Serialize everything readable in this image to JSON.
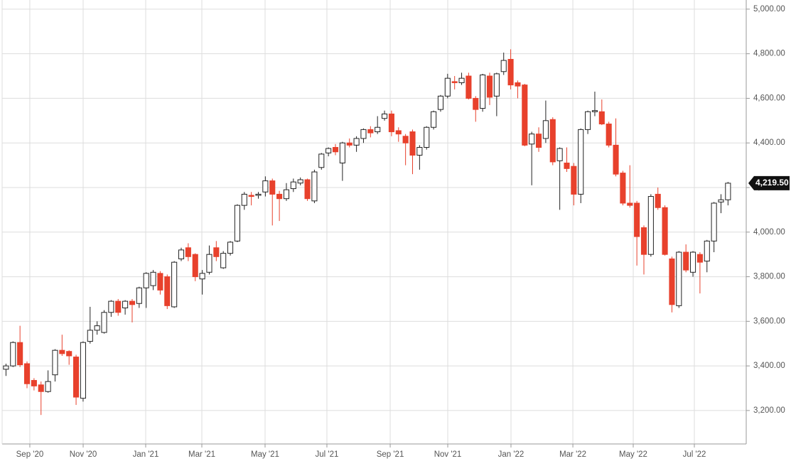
{
  "chart_data": {
    "type": "candlestick",
    "open": [
      3385,
      3400,
      3505,
      3410,
      3335,
      3315,
      3285,
      3360,
      3470,
      3465,
      3440,
      3255,
      3510,
      3560,
      3550,
      3640,
      3690,
      3660,
      3690,
      3680,
      3750,
      3760,
      3815,
      3800,
      3665,
      3880,
      3930,
      3900,
      3790,
      3820,
      3930,
      3840,
      3905,
      3960,
      4120,
      4165,
      4165,
      4180,
      4230,
      4170,
      4150,
      4195,
      4220,
      4235,
      4140,
      4290,
      4355,
      4380,
      4310,
      4400,
      4390,
      4420,
      4460,
      4450,
      4510,
      4530,
      4455,
      4430,
      4450,
      4345,
      4380,
      4470,
      4550,
      4610,
      4675,
      4670,
      4700,
      4600,
      4555,
      4700,
      4610,
      4720,
      4775,
      4670,
      4660,
      4395,
      4440,
      4420,
      4505,
      4320,
      4310,
      4295,
      4170,
      4460,
      4540,
      4540,
      4485,
      4390,
      4265,
      4130,
      4130,
      4020,
      3900,
      4170,
      4110,
      3880,
      3670,
      3910,
      3820,
      3900,
      3870,
      3960,
      4135,
      4145
    ],
    "high": [
      3410,
      3510,
      3580,
      3420,
      3345,
      3330,
      3380,
      3475,
      3540,
      3470,
      3450,
      3510,
      3665,
      3600,
      3650,
      3695,
      3700,
      3695,
      3700,
      3755,
      3820,
      3830,
      3825,
      3810,
      3870,
      3930,
      3950,
      3905,
      3830,
      3940,
      3960,
      3915,
      3960,
      4125,
      4180,
      4180,
      4180,
      4250,
      4240,
      4185,
      4220,
      4240,
      4245,
      4240,
      4280,
      4355,
      4380,
      4395,
      4405,
      4420,
      4430,
      4465,
      4475,
      4520,
      4545,
      4545,
      4470,
      4440,
      4460,
      4390,
      4475,
      4545,
      4615,
      4710,
      4700,
      4715,
      4715,
      4610,
      4710,
      4715,
      4715,
      4805,
      4820,
      4680,
      4665,
      4450,
      4470,
      4590,
      4515,
      4380,
      4380,
      4310,
      4465,
      4545,
      4630,
      4595,
      4495,
      4510,
      4275,
      4300,
      4140,
      4030,
      4170,
      4200,
      4120,
      3890,
      3915,
      3945,
      3915,
      3910,
      3965,
      4135,
      4170,
      4225
    ],
    "low": [
      3355,
      3395,
      3395,
      3300,
      3290,
      3180,
      3280,
      3330,
      3445,
      3405,
      3225,
      3240,
      3500,
      3540,
      3545,
      3620,
      3625,
      3630,
      3595,
      3660,
      3660,
      3740,
      3720,
      3655,
      3660,
      3870,
      3870,
      3780,
      3720,
      3810,
      3870,
      3835,
      3895,
      3955,
      4100,
      4120,
      4150,
      4160,
      4030,
      4050,
      4140,
      4180,
      4210,
      4140,
      4130,
      4280,
      4340,
      4345,
      4230,
      4380,
      4360,
      4400,
      4425,
      4440,
      4500,
      4430,
      4405,
      4300,
      4260,
      4280,
      4370,
      4460,
      4540,
      4600,
      4640,
      4660,
      4595,
      4495,
      4540,
      4570,
      4520,
      4705,
      4640,
      4600,
      4385,
      4210,
      4360,
      4400,
      4300,
      4100,
      4270,
      4120,
      4130,
      4440,
      4520,
      4480,
      4380,
      4250,
      4120,
      4110,
      3850,
      3810,
      3890,
      4100,
      3895,
      3640,
      3660,
      3820,
      3800,
      3725,
      3820,
      3910,
      4085,
      4120
    ],
    "close": [
      3400,
      3505,
      3405,
      3320,
      3310,
      3285,
      3330,
      3470,
      3455,
      3445,
      3260,
      3505,
      3560,
      3580,
      3640,
      3690,
      3640,
      3690,
      3675,
      3750,
      3815,
      3820,
      3740,
      3670,
      3865,
      3920,
      3890,
      3800,
      3815,
      3900,
      3890,
      3905,
      3955,
      4120,
      4170,
      4160,
      4170,
      4230,
      4170,
      4150,
      4190,
      4225,
      4235,
      4150,
      4270,
      4350,
      4375,
      4360,
      4400,
      4390,
      4420,
      4460,
      4445,
      4470,
      4530,
      4450,
      4440,
      4400,
      4345,
      4380,
      4470,
      4540,
      4610,
      4690,
      4670,
      4690,
      4600,
      4550,
      4705,
      4605,
      4710,
      4770,
      4660,
      4655,
      4390,
      4440,
      4380,
      4500,
      4315,
      4375,
      4285,
      4170,
      4460,
      4540,
      4545,
      4485,
      4390,
      4260,
      4130,
      4120,
      3980,
      3900,
      4160,
      4110,
      3900,
      3675,
      3910,
      3830,
      3910,
      3865,
      3960,
      4130,
      4145,
      4219.5
    ],
    "up_color": "#ffffff",
    "down_color": "#e8412c",
    "wick_color": "#222222",
    "xlim": [
      -0.55,
      105.6
    ],
    "xticks": [
      {
        "value": 3.4,
        "label": "Sep '20"
      },
      {
        "value": 11.01,
        "label": "Nov '20"
      },
      {
        "value": 19.93,
        "label": "Jan '21"
      },
      {
        "value": 27.94,
        "label": "Mar '21"
      },
      {
        "value": 36.96,
        "label": "May '21"
      },
      {
        "value": 45.78,
        "label": "Jul '21"
      },
      {
        "value": 54.81,
        "label": "Sep '21"
      },
      {
        "value": 63.02,
        "label": "Nov '21"
      },
      {
        "value": 72.04,
        "label": "Jan '22"
      },
      {
        "value": 80.87,
        "label": "Mar '22"
      },
      {
        "value": 89.48,
        "label": "May '22"
      },
      {
        "value": 98.2,
        "label": "Jul '22"
      }
    ],
    "ylim": [
      3050,
      5041
    ],
    "yticks": [
      {
        "value": 3200,
        "label": "3,200.00"
      },
      {
        "value": 3400,
        "label": "3,400.00"
      },
      {
        "value": 3600,
        "label": "3,600.00"
      },
      {
        "value": 3800,
        "label": "3,800.00"
      },
      {
        "value": 4000,
        "label": "4,000.00"
      },
      {
        "value": 4200,
        "label": "4,200.00"
      },
      {
        "value": 4400,
        "label": "4,400.00"
      },
      {
        "value": 4600,
        "label": "4,600.00"
      },
      {
        "value": 4800,
        "label": "4,800.00"
      },
      {
        "value": 5000,
        "label": "5,000.00"
      }
    ],
    "last_price": {
      "value": 4219.5,
      "label": "4,219.50"
    },
    "grid": true
  }
}
